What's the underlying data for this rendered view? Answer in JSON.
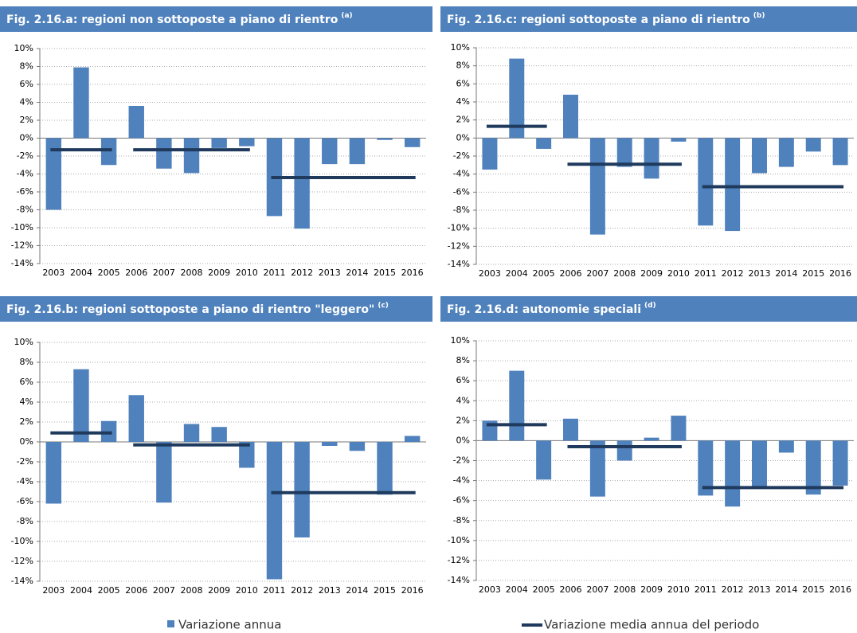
{
  "chart_data": [
    {
      "type": "bar",
      "title": "Fig. 2.16.a: regioni non sottoposte a piano di rientro",
      "title_note": "(a)",
      "categories": [
        "2003",
        "2004",
        "2005",
        "2006",
        "2007",
        "2008",
        "2009",
        "2010",
        "2011",
        "2012",
        "2013",
        "2014",
        "2015",
        "2016"
      ],
      "series": [
        {
          "color": "#4f81bd",
          "values": [
            -8.0,
            7.9,
            -3.0,
            3.6,
            -3.4,
            -3.9,
            -1.1,
            -0.9,
            -8.7,
            -10.1,
            -2.9,
            -2.9,
            -0.2,
            -1.0
          ]
        }
      ],
      "periods": {
        "color": "#1f3a5c",
        "items": [
          {
            "from": "2003",
            "to": "2005",
            "value": -1.3
          },
          {
            "from": "2006",
            "to": "2010",
            "value": -1.3
          },
          {
            "from": "2011",
            "to": "2016",
            "value": -4.4
          }
        ]
      },
      "ylim": [
        -14,
        10
      ],
      "grid": true,
      "yticks": [
        {
          "value": 10,
          "label": "10%"
        },
        {
          "value": 8,
          "label": "8%"
        },
        {
          "value": 6,
          "label": "6%"
        },
        {
          "value": 4,
          "label": "4%"
        },
        {
          "value": 2,
          "label": "2%"
        },
        {
          "value": 0,
          "label": "0%"
        },
        {
          "value": -2,
          "label": "-2%"
        },
        {
          "value": -4,
          "label": "-4%"
        },
        {
          "value": -6,
          "label": "-6%"
        },
        {
          "value": -8,
          "label": "-8%"
        },
        {
          "value": -10,
          "label": "-10%"
        },
        {
          "value": -12,
          "label": "-12%"
        },
        {
          "value": -14,
          "label": "-14%"
        }
      ]
    },
    {
      "type": "bar",
      "title": "Fig. 2.16.c: regioni sottoposte a piano di rientro",
      "title_note": "(b)",
      "categories": [
        "2003",
        "2004",
        "2005",
        "2006",
        "2007",
        "2008",
        "2009",
        "2010",
        "2011",
        "2012",
        "2013",
        "2014",
        "2015",
        "2016"
      ],
      "series": [
        {
          "color": "#4f81bd",
          "values": [
            -3.5,
            8.8,
            -1.2,
            4.8,
            -10.7,
            -3.2,
            -4.5,
            -0.4,
            -9.7,
            -10.3,
            -3.9,
            -3.2,
            -1.5,
            -3.0
          ]
        }
      ],
      "periods": {
        "color": "#1f3a5c",
        "items": [
          {
            "from": "2003",
            "to": "2005",
            "value": 1.3
          },
          {
            "from": "2006",
            "to": "2010",
            "value": -2.9
          },
          {
            "from": "2011",
            "to": "2016",
            "value": -5.4
          }
        ]
      },
      "ylim": [
        -14,
        10
      ],
      "grid": true,
      "yticks": [
        {
          "value": 10,
          "label": "10%"
        },
        {
          "value": 8,
          "label": "8%"
        },
        {
          "value": 6,
          "label": "6%"
        },
        {
          "value": 4,
          "label": "4%"
        },
        {
          "value": 2,
          "label": "2%"
        },
        {
          "value": 0,
          "label": "0%"
        },
        {
          "value": -2,
          "label": "-2%"
        },
        {
          "value": -4,
          "label": "-4%"
        },
        {
          "value": -6,
          "label": "-6%"
        },
        {
          "value": -8,
          "label": "-8%"
        },
        {
          "value": -10,
          "label": "-10%"
        },
        {
          "value": -12,
          "label": "-12%"
        },
        {
          "value": -14,
          "label": "-14%"
        }
      ]
    },
    {
      "type": "bar",
      "title": "Fig. 2.16.b: regioni sottoposte a piano di rientro \"leggero\"",
      "title_note": "(c)",
      "categories": [
        "2003",
        "2004",
        "2005",
        "2006",
        "2007",
        "2008",
        "2009",
        "2010",
        "2011",
        "2012",
        "2013",
        "2014",
        "2015",
        "2016"
      ],
      "series": [
        {
          "color": "#4f81bd",
          "values": [
            -6.2,
            7.3,
            2.1,
            4.7,
            -6.1,
            1.8,
            1.5,
            -2.6,
            -13.8,
            -9.6,
            -0.4,
            -0.9,
            -5.3,
            0.6
          ]
        }
      ],
      "periods": {
        "color": "#1f3a5c",
        "items": [
          {
            "from": "2003",
            "to": "2005",
            "value": 0.9
          },
          {
            "from": "2006",
            "to": "2010",
            "value": -0.3
          },
          {
            "from": "2011",
            "to": "2016",
            "value": -5.1
          }
        ]
      },
      "ylim": [
        -14,
        10
      ],
      "grid": true,
      "yticks": [
        {
          "value": 10,
          "label": "10%"
        },
        {
          "value": 8,
          "label": "8%"
        },
        {
          "value": 6,
          "label": "6%"
        },
        {
          "value": 4,
          "label": "4%"
        },
        {
          "value": 2,
          "label": "2%"
        },
        {
          "value": 0,
          "label": "0%"
        },
        {
          "value": -2,
          "label": "-2%"
        },
        {
          "value": -4,
          "label": "-4%"
        },
        {
          "value": -6,
          "label": "-6%"
        },
        {
          "value": -8,
          "label": "-8%"
        },
        {
          "value": -10,
          "label": "-10%"
        },
        {
          "value": -12,
          "label": "-12%"
        },
        {
          "value": -14,
          "label": "-14%"
        }
      ]
    },
    {
      "type": "bar",
      "title": "Fig. 2.16.d: autonomie speciali",
      "title_note": "(d)",
      "categories": [
        "2003",
        "2004",
        "2005",
        "2006",
        "2007",
        "2008",
        "2009",
        "2010",
        "2011",
        "2012",
        "2013",
        "2014",
        "2015",
        "2016"
      ],
      "series": [
        {
          "color": "#4f81bd",
          "values": [
            2.0,
            7.0,
            -3.9,
            2.2,
            -5.6,
            -2.0,
            0.3,
            2.5,
            -5.5,
            -6.6,
            -4.6,
            -1.2,
            -5.4,
            -4.5
          ]
        }
      ],
      "periods": {
        "color": "#1f3a5c",
        "items": [
          {
            "from": "2003",
            "to": "2005",
            "value": 1.6
          },
          {
            "from": "2006",
            "to": "2010",
            "value": -0.6
          },
          {
            "from": "2011",
            "to": "2016",
            "value": -4.7
          }
        ]
      },
      "ylim": [
        -14,
        10
      ],
      "grid": true,
      "yticks": [
        {
          "value": 10,
          "label": "10%"
        },
        {
          "value": 8,
          "label": "8%"
        },
        {
          "value": 6,
          "label": "6%"
        },
        {
          "value": 4,
          "label": "4%"
        },
        {
          "value": 2,
          "label": "2%"
        },
        {
          "value": 0,
          "label": "0%"
        },
        {
          "value": -2,
          "label": "-2%"
        },
        {
          "value": -4,
          "label": "-4%"
        },
        {
          "value": -6,
          "label": "-6%"
        },
        {
          "value": -8,
          "label": "-8%"
        },
        {
          "value": -10,
          "label": "-10%"
        },
        {
          "value": -12,
          "label": "-12%"
        },
        {
          "value": -14,
          "label": "-14%"
        }
      ]
    }
  ],
  "legend": {
    "position": "bottom",
    "items": [
      {
        "name": "Variazione annua",
        "color": "#4f81bd",
        "kind": "bar"
      },
      {
        "name": "Variazione media annua del periodo",
        "color": "#1f3a5c",
        "kind": "line"
      }
    ]
  }
}
